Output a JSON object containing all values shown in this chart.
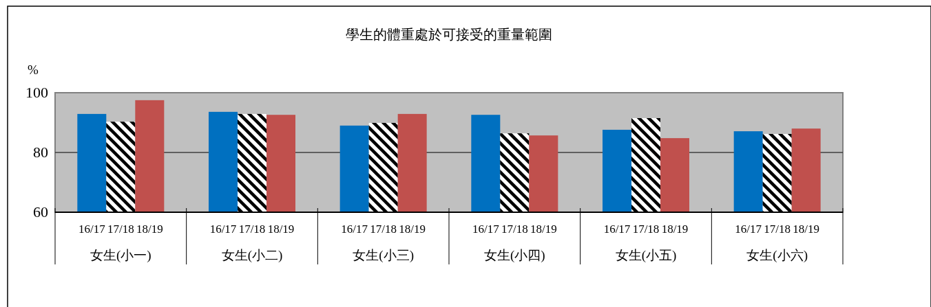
{
  "chart_data": {
    "type": "bar",
    "title": "學生的體重處於可接受的重量範圍",
    "ylabel": "%",
    "categories": [
      "女生(小一)",
      "女生(小二)",
      "女生(小三)",
      "女生(小四)",
      "女生(小五)",
      "女生(小六)"
    ],
    "series": [
      {
        "name": "16/17",
        "color": "#0070c0",
        "values": [
          92.9,
          93.6,
          89.0,
          92.6,
          87.6,
          87.1
        ]
      },
      {
        "name": "17/18",
        "color": "#000000",
        "values": [
          90.3,
          92.9,
          89.9,
          86.4,
          91.5,
          86.2
        ]
      },
      {
        "name": "18/19",
        "color": "#c0504d",
        "values": [
          97.5,
          92.6,
          92.9,
          85.7,
          84.8,
          88.0
        ]
      }
    ],
    "ylim": [
      60,
      100
    ],
    "yticks": [
      60,
      80,
      100
    ],
    "grid": "y"
  }
}
